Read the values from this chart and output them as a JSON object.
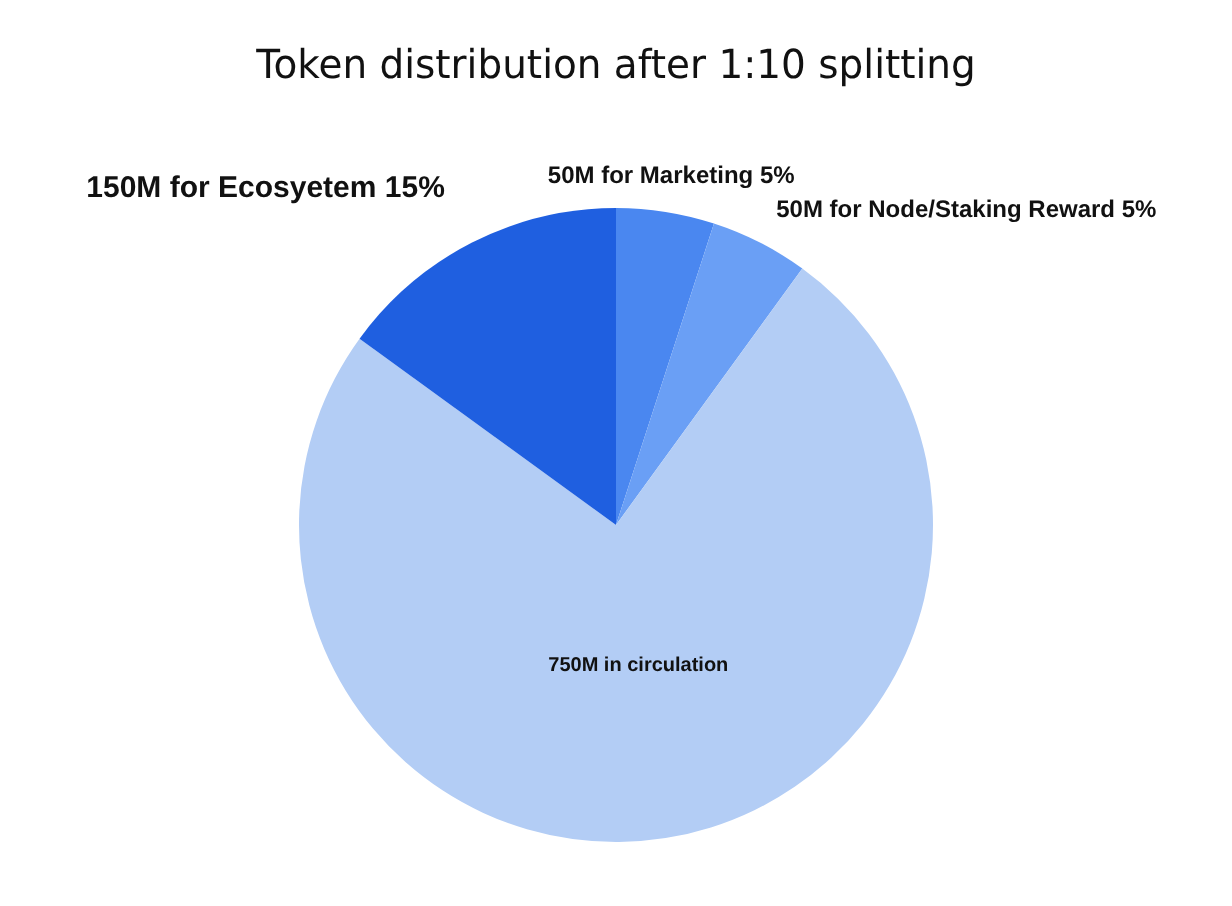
{
  "chart_data": {
    "type": "pie",
    "title": "Token distribution after 1:10 splitting",
    "categories": [
      "50M for Marketing 5%",
      "50M for Node/Staking Reward 5%",
      "750M in circulation",
      "150M for Ecosyetem 15%"
    ],
    "values": [
      50,
      50,
      750,
      150
    ],
    "colors": [
      "#4a87f0",
      "#6a9ff5",
      "#b3cdf5",
      "#1f5fe0"
    ],
    "legend": false
  }
}
